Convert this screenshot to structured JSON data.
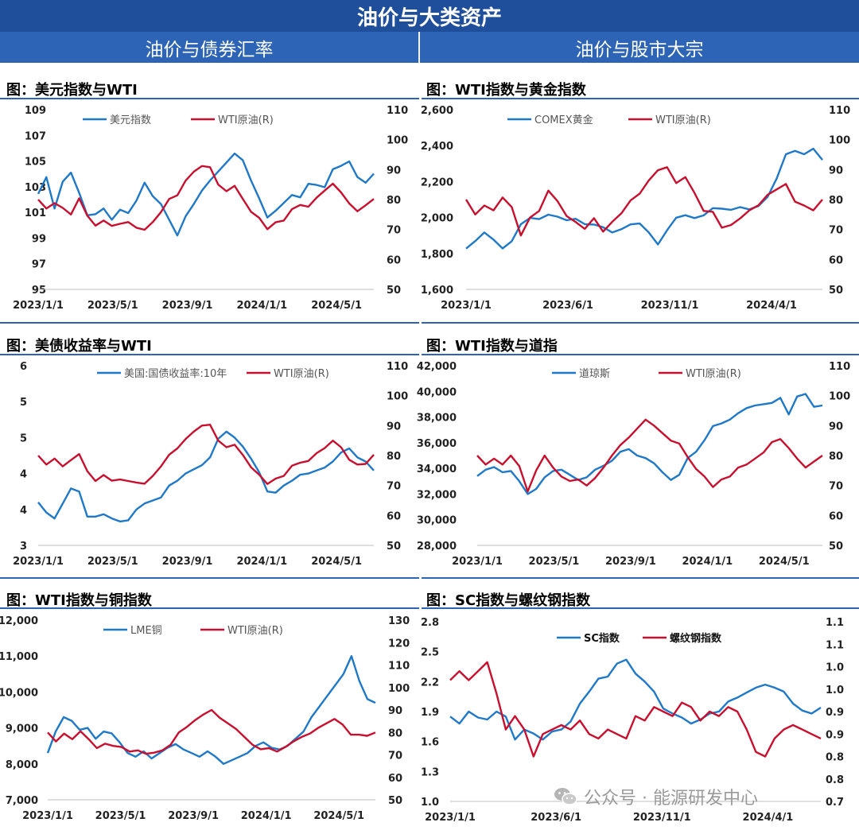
{
  "header": {
    "title": "油价与大类资产",
    "left_section": "油价与债券汇率",
    "right_section": "油价与股市大宗"
  },
  "watermark": "公众号 · 能源研发中心",
  "chart_data": [
    {
      "id": "usd",
      "type": "line",
      "title": "图：美元指数与WTI",
      "x_ticks": [
        "2023/1/1",
        "2023/5/1",
        "2023/9/1",
        "2024/1/1",
        "2024/5/1"
      ],
      "y_left": {
        "ticks": [
          "95",
          "97",
          "99",
          "101",
          "103",
          "105",
          "107",
          "109"
        ],
        "range": [
          95,
          111
        ]
      },
      "y_right": {
        "ticks": [
          "50",
          "60",
          "70",
          "80",
          "90",
          "100",
          "110"
        ],
        "range": [
          50,
          110
        ]
      },
      "series": [
        {
          "name": "美元指数",
          "axis": "left",
          "color": "#1f78c8",
          "values": [
            103.5,
            105.0,
            102.2,
            104.6,
            105.4,
            103.6,
            101.6,
            101.7,
            102.2,
            101.2,
            102.1,
            101.8,
            102.9,
            104.5,
            103.3,
            102.6,
            101.2,
            99.8,
            101.5,
            102.6,
            103.8,
            104.7,
            105.5,
            106.3,
            107.1,
            106.5,
            104.7,
            103.1,
            101.4,
            102.0,
            102.7,
            103.4,
            103.2,
            104.4,
            104.3,
            104.1,
            105.7,
            106.0,
            106.4,
            105.0,
            104.5,
            105.3
          ]
        },
        {
          "name": "WTI原油(R)",
          "axis": "right",
          "color": "#c8102e",
          "values": [
            80.0,
            77.0,
            78.8,
            77.2,
            75.0,
            80.4,
            74.6,
            71.3,
            73.0,
            71.2,
            71.9,
            72.5,
            70.6,
            69.9,
            72.5,
            75.8,
            80.2,
            81.4,
            86.3,
            89.3,
            91.2,
            90.8,
            85.0,
            82.8,
            84.6,
            80.2,
            75.9,
            73.9,
            70.1,
            72.4,
            73.0,
            76.8,
            78.2,
            77.6,
            80.6,
            83.0,
            85.3,
            82.4,
            78.7,
            76.1,
            78.1,
            80.2
          ]
        }
      ]
    },
    {
      "id": "gold",
      "type": "line",
      "title": "图：WTI指数与黄金指数",
      "x_ticks": [
        "2023/1/1",
        "2023/6/1",
        "2023/11/1",
        "2024/4/1"
      ],
      "y_left": {
        "ticks": [
          "1,600",
          "1,800",
          "2,000",
          "2,200",
          "2,400",
          "2,600"
        ],
        "range": [
          1600,
          2600
        ]
      },
      "y_right": {
        "ticks": [
          "50",
          "60",
          "70",
          "80",
          "90",
          "100",
          "110"
        ],
        "range": [
          50,
          110
        ]
      },
      "series": [
        {
          "name": "COMEX黄金",
          "axis": "left",
          "color": "#1f78c8",
          "values": [
            1827,
            1869,
            1917,
            1877,
            1828,
            1868,
            1963,
            1998,
            1991,
            2016,
            2005,
            1985,
            1993,
            1963,
            1961,
            1946,
            1917,
            1935,
            1962,
            1967,
            1917,
            1850,
            1929,
            1999,
            2013,
            1997,
            2012,
            2052,
            2049,
            2043,
            2058,
            2045,
            2064,
            2115,
            2218,
            2352,
            2371,
            2352,
            2383,
            2321
          ]
        },
        {
          "name": "WTI原油(R)",
          "axis": "right",
          "color": "#c8102e",
          "values": [
            80.0,
            75.0,
            78.0,
            76.4,
            80.7,
            77.5,
            68.0,
            74.0,
            76.2,
            83.0,
            79.5,
            74.5,
            72.5,
            70.2,
            73.8,
            69.3,
            72.6,
            75.4,
            79.7,
            82.0,
            86.4,
            89.8,
            90.8,
            85.5,
            87.5,
            82.2,
            76.2,
            75.9,
            70.6,
            71.5,
            73.7,
            76.4,
            78.1,
            81.6,
            83.4,
            85.2,
            79.3,
            78.0,
            76.4,
            80.0
          ]
        }
      ]
    },
    {
      "id": "yield",
      "type": "line",
      "title": "图：美债收益率与WTI",
      "x_ticks": [
        "2023/1/1",
        "2023/5/1",
        "2023/9/1",
        "2024/1/1",
        "2024/5/1"
      ],
      "y_left": {
        "ticks": [
          "3",
          "4",
          "4",
          "5",
          "5",
          "6"
        ],
        "range": [
          3.0,
          6.0
        ]
      },
      "y_right": {
        "ticks": [
          "50",
          "60",
          "70",
          "80",
          "90",
          "100",
          "110"
        ],
        "range": [
          50,
          110
        ]
      },
      "series": [
        {
          "name": "美国:国债收益率:10年",
          "axis": "left",
          "color": "#1f78c8",
          "values": [
            3.72,
            3.55,
            3.45,
            3.7,
            3.95,
            3.9,
            3.48,
            3.48,
            3.52,
            3.45,
            3.4,
            3.42,
            3.6,
            3.7,
            3.75,
            3.8,
            4.0,
            4.08,
            4.2,
            4.27,
            4.34,
            4.47,
            4.78,
            4.9,
            4.8,
            4.65,
            4.45,
            4.22,
            3.9,
            3.88,
            4.0,
            4.08,
            4.18,
            4.2,
            4.25,
            4.3,
            4.4,
            4.55,
            4.62,
            4.47,
            4.4,
            4.25
          ]
        },
        {
          "name": "WTI原油(R)",
          "axis": "right",
          "color": "#c8102e",
          "values": [
            80.0,
            77.0,
            79.0,
            76.4,
            78.5,
            80.5,
            74.8,
            71.5,
            73.5,
            71.6,
            72.0,
            71.5,
            71.0,
            70.6,
            73.2,
            76.4,
            80.3,
            82.4,
            85.5,
            88.0,
            90.0,
            90.3,
            85.0,
            82.8,
            83.6,
            80.2,
            76.1,
            73.6,
            70.5,
            72.3,
            73.2,
            76.6,
            77.6,
            78.2,
            80.8,
            82.5,
            85.0,
            82.8,
            78.6,
            77.0,
            77.2,
            80.3
          ]
        }
      ]
    },
    {
      "id": "dow",
      "type": "line",
      "title": "图：WTI指数与道指",
      "x_ticks": [
        "2023/1/1",
        "2023/5/1",
        "2023/9/1",
        "2024/1/1",
        "2024/5/1"
      ],
      "y_left": {
        "ticks": [
          "28,000",
          "30,000",
          "32,000",
          "34,000",
          "36,000",
          "38,000",
          "40,000",
          "42,000"
        ],
        "range": [
          28000,
          42000
        ]
      },
      "y_right": {
        "ticks": [
          "50",
          "60",
          "70",
          "80",
          "90",
          "100",
          "110"
        ],
        "range": [
          50,
          110
        ]
      },
      "series": [
        {
          "name": "道琼斯",
          "axis": "left",
          "color": "#1f78c8",
          "values": [
            33400,
            33900,
            34100,
            33700,
            33800,
            33000,
            32000,
            32400,
            33300,
            33800,
            33900,
            33500,
            33100,
            33300,
            33900,
            34200,
            34600,
            35300,
            35500,
            35000,
            34800,
            34400,
            33700,
            33100,
            33500,
            34800,
            35300,
            36200,
            37300,
            37500,
            37800,
            38300,
            38700,
            38900,
            39000,
            39100,
            39500,
            38200,
            39600,
            39800,
            38800,
            38900
          ]
        },
        {
          "name": "WTI原油(R)",
          "axis": "right",
          "color": "#c8102e",
          "values": [
            80.0,
            77.0,
            79.0,
            77.0,
            80.0,
            76.5,
            68.0,
            75.0,
            80.0,
            76.0,
            73.0,
            71.5,
            72.0,
            70.0,
            72.5,
            76.0,
            80.0,
            83.5,
            86.0,
            89.0,
            92.0,
            90.0,
            87.5,
            85.0,
            84.0,
            79.5,
            75.5,
            73.0,
            69.5,
            72.0,
            73.0,
            76.0,
            77.0,
            79.0,
            81.0,
            84.5,
            85.5,
            82.5,
            79.0,
            76.0,
            78.0,
            80.0
          ]
        }
      ]
    },
    {
      "id": "copper",
      "type": "line",
      "title": "图：WTI指数与铜指数",
      "x_ticks": [
        "2023/1/1",
        "2023/5/1",
        "2023/9/1",
        "2024/1/1",
        "2024/5/1"
      ],
      "y_left": {
        "ticks": [
          "7,000",
          "8,000",
          "9,000",
          "10,000",
          "11,000",
          "12,000"
        ],
        "range": [
          7000,
          12000
        ]
      },
      "y_right": {
        "ticks": [
          "50",
          "60",
          "70",
          "80",
          "90",
          "100",
          "110",
          "120",
          "130"
        ],
        "range": [
          50,
          130
        ]
      },
      "series": [
        {
          "name": "LME铜",
          "axis": "left",
          "color": "#1f78c8",
          "values": [
            8300,
            8900,
            9300,
            9200,
            8950,
            9000,
            8700,
            8900,
            8850,
            8600,
            8300,
            8200,
            8350,
            8150,
            8300,
            8450,
            8550,
            8400,
            8300,
            8200,
            8350,
            8200,
            8000,
            8100,
            8200,
            8300,
            8500,
            8600,
            8450,
            8400,
            8500,
            8700,
            8900,
            9300,
            9600,
            9900,
            10200,
            10500,
            11000,
            10300,
            9800,
            9700
          ]
        },
        {
          "name": "WTI原油(R)",
          "axis": "right",
          "color": "#c8102e",
          "values": [
            80.0,
            76.0,
            79.5,
            77.0,
            80.5,
            77.0,
            73.0,
            75.0,
            74.0,
            73.5,
            71.5,
            72.0,
            70.5,
            71.0,
            72.0,
            74.5,
            80.0,
            82.5,
            85.5,
            88.0,
            90.0,
            86.5,
            84.0,
            81.5,
            78.0,
            74.5,
            72.5,
            73.0,
            71.5,
            73.5,
            76.0,
            78.0,
            79.5,
            82.0,
            84.0,
            86.0,
            83.5,
            79.0,
            79.0,
            78.5,
            80.0
          ]
        }
      ]
    },
    {
      "id": "rebar",
      "type": "line",
      "title": "图：SC指数与螺纹钢指数",
      "x_ticks": [
        "2023/1/1",
        "2023/6/1",
        "2023/11/1",
        "2024/4/1"
      ],
      "y_left": {
        "ticks": [
          "1.0",
          "1.3",
          "1.6",
          "1.9",
          "2.2",
          "2.5",
          "2.8"
        ],
        "range": [
          1.0,
          2.8
        ]
      },
      "y_right": {
        "ticks": [
          "0.7",
          "0.8",
          "0.8",
          "0.9",
          "0.9",
          "1.0",
          "1.0",
          "1.1",
          "1.1"
        ],
        "range": [
          0.7,
          1.1
        ]
      },
      "series": [
        {
          "name": "SC指数",
          "axis": "left",
          "color": "#1f78c8",
          "values": [
            1.85,
            1.78,
            1.9,
            1.84,
            1.82,
            1.9,
            1.85,
            1.62,
            1.72,
            1.68,
            1.62,
            1.7,
            1.72,
            1.8,
            1.98,
            2.1,
            2.23,
            2.25,
            2.38,
            2.42,
            2.28,
            2.2,
            2.1,
            1.93,
            1.88,
            1.84,
            1.78,
            1.82,
            1.88,
            1.9,
            2.0,
            2.04,
            2.09,
            2.14,
            2.17,
            2.14,
            2.1,
            1.98,
            1.91,
            1.88,
            1.94
          ]
        },
        {
          "name": "螺纹钢指数",
          "axis": "right",
          "color": "#c8102e",
          "values": [
            0.97,
            0.99,
            0.97,
            0.99,
            1.01,
            0.94,
            0.86,
            0.89,
            0.86,
            0.8,
            0.85,
            0.86,
            0.87,
            0.86,
            0.88,
            0.85,
            0.84,
            0.86,
            0.85,
            0.84,
            0.89,
            0.88,
            0.91,
            0.9,
            0.89,
            0.92,
            0.91,
            0.88,
            0.9,
            0.89,
            0.91,
            0.9,
            0.86,
            0.81,
            0.8,
            0.84,
            0.86,
            0.87,
            0.86,
            0.85,
            0.84
          ]
        }
      ]
    }
  ]
}
